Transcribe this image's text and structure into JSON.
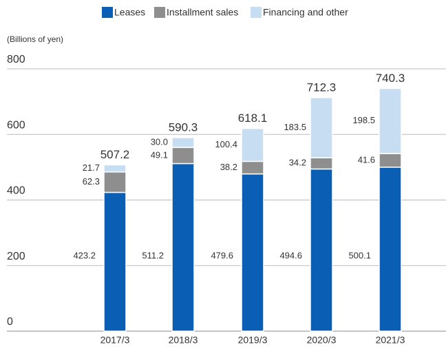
{
  "chart_data": {
    "type": "stacked_bar",
    "y_label": "(Billions of yen)",
    "categories": [
      "2017/3",
      "2018/3",
      "2019/3",
      "2020/3",
      "2021/3"
    ],
    "series": [
      {
        "name": "Leases",
        "color": "#0a5fb4",
        "values": [
          423.2,
          511.2,
          479.6,
          494.6,
          500.1
        ]
      },
      {
        "name": "Installment sales",
        "color": "#8e8e8e",
        "values": [
          62.3,
          49.1,
          38.2,
          34.2,
          41.6
        ]
      },
      {
        "name": "Financing and other",
        "color": "#c6ddf2",
        "values": [
          21.7,
          30.0,
          100.4,
          183.5,
          198.5
        ],
        "value_labels": [
          "21.7",
          "30.0",
          "100.4",
          "183.5",
          "198.5"
        ]
      }
    ],
    "totals": [
      507.2,
      590.3,
      618.1,
      712.3,
      740.3
    ],
    "ylim": [
      0,
      800
    ],
    "yticks": [
      0,
      200,
      400,
      600,
      800
    ],
    "grid": true
  }
}
